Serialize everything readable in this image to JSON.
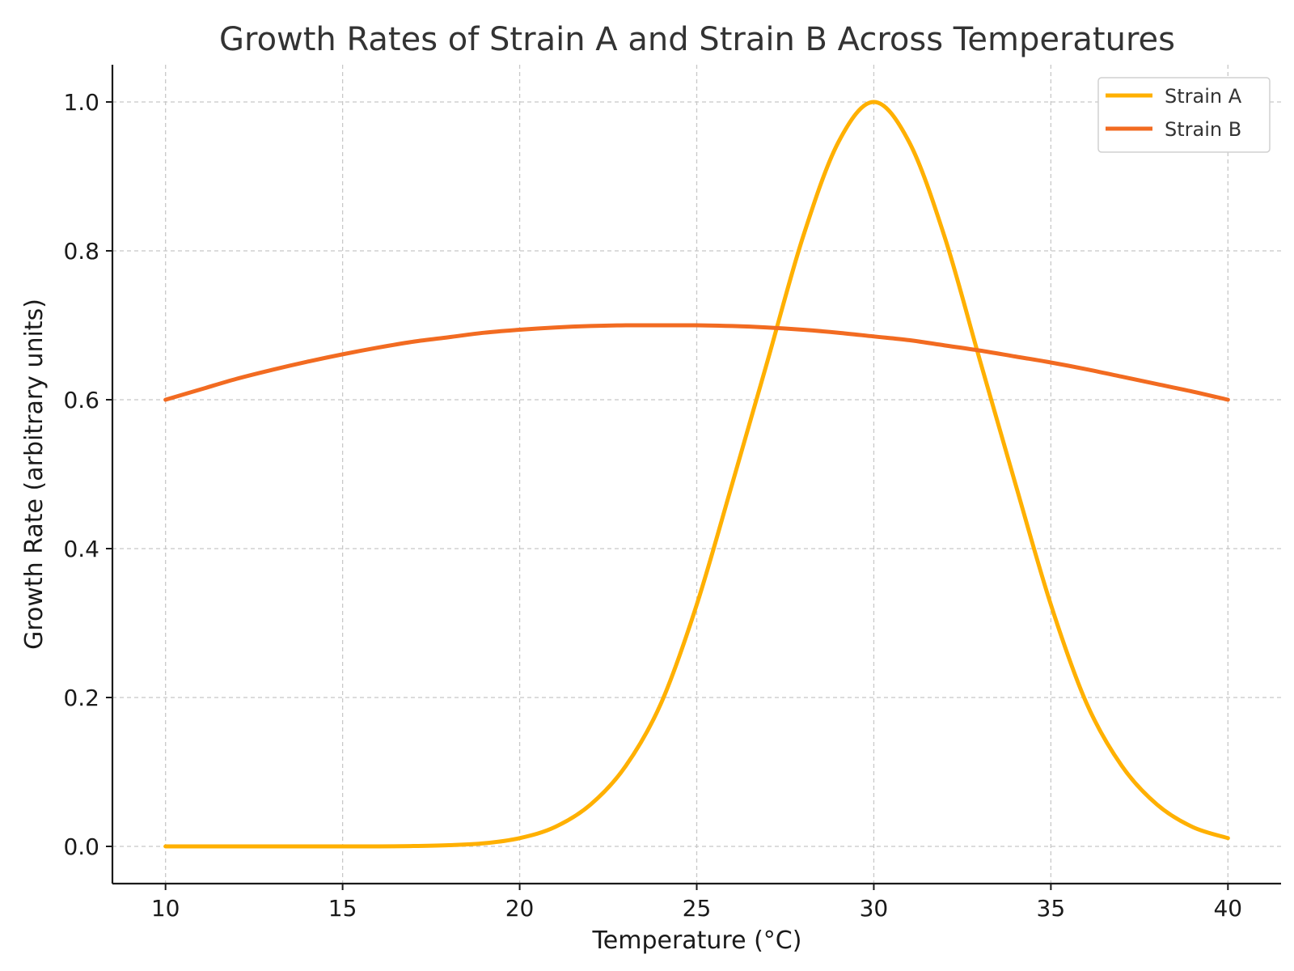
{
  "chart_data": {
    "type": "line",
    "title": "Growth Rates of Strain A and Strain B Across Temperatures",
    "xlabel": "Temperature (°C)",
    "ylabel": "Growth Rate (arbitrary units)",
    "xlim": [
      8.5,
      41.5
    ],
    "ylim": [
      -0.05,
      1.05
    ],
    "xticks": [
      10,
      15,
      20,
      25,
      30,
      35,
      40
    ],
    "yticks": [
      0.0,
      0.2,
      0.4,
      0.6,
      0.8,
      1.0
    ],
    "xtick_labels": [
      "10",
      "15",
      "20",
      "25",
      "30",
      "35",
      "40"
    ],
    "ytick_labels": [
      "0.0",
      "0.2",
      "0.4",
      "0.6",
      "0.8",
      "1.0"
    ],
    "grid": true,
    "legend_position": "top-right",
    "x": [
      10,
      11,
      12,
      13,
      14,
      15,
      16,
      17,
      18,
      19,
      20,
      21,
      22,
      23,
      24,
      25,
      26,
      27,
      28,
      29,
      30,
      31,
      32,
      33,
      34,
      35,
      36,
      37,
      38,
      39,
      40
    ],
    "series": [
      {
        "name": "Strain A",
        "color": "#FFB000",
        "values": [
          0.0,
          0.0,
          0.0,
          0.0,
          0.0,
          0.0,
          0.0,
          0.0005,
          0.0016,
          0.0042,
          0.0111,
          0.0261,
          0.0561,
          0.1083,
          0.1931,
          0.3247,
          0.4868,
          0.6523,
          0.8187,
          0.946,
          1.0,
          0.946,
          0.8187,
          0.6523,
          0.4868,
          0.3247,
          0.1931,
          0.1083,
          0.0561,
          0.0261,
          0.0111
        ]
      },
      {
        "name": "Strain B",
        "color": "#F26B21",
        "values": [
          0.6,
          0.614,
          0.628,
          0.64,
          0.651,
          0.661,
          0.67,
          0.678,
          0.684,
          0.69,
          0.694,
          0.697,
          0.699,
          0.7,
          0.7,
          0.7,
          0.699,
          0.697,
          0.694,
          0.69,
          0.685,
          0.68,
          0.673,
          0.666,
          0.658,
          0.65,
          0.641,
          0.631,
          0.621,
          0.611,
          0.6
        ]
      }
    ]
  }
}
